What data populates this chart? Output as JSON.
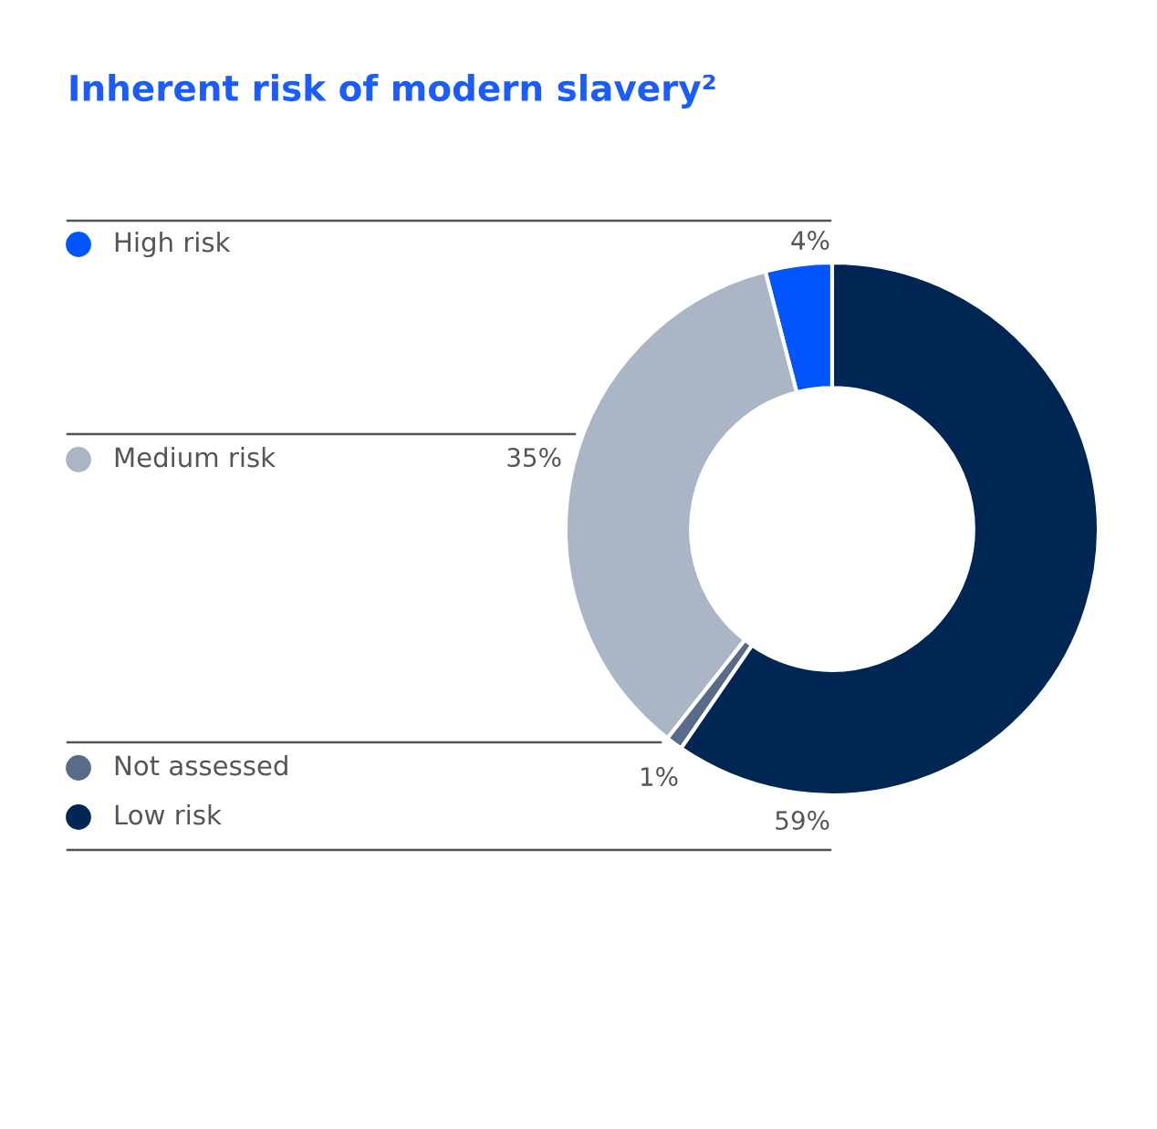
{
  "chart_data": {
    "type": "donut",
    "title": "Inherent risk of modern slavery²",
    "categories": [
      "High risk",
      "Medium risk",
      "Not assessed",
      "Low risk"
    ],
    "values": [
      4,
      35,
      1,
      59
    ],
    "colors": [
      "#0055ff",
      "#aab5c6",
      "#5a6b8a",
      "#002654"
    ],
    "value_labels": [
      "4%",
      "35%",
      "1%",
      "59%"
    ],
    "legend": "left"
  }
}
